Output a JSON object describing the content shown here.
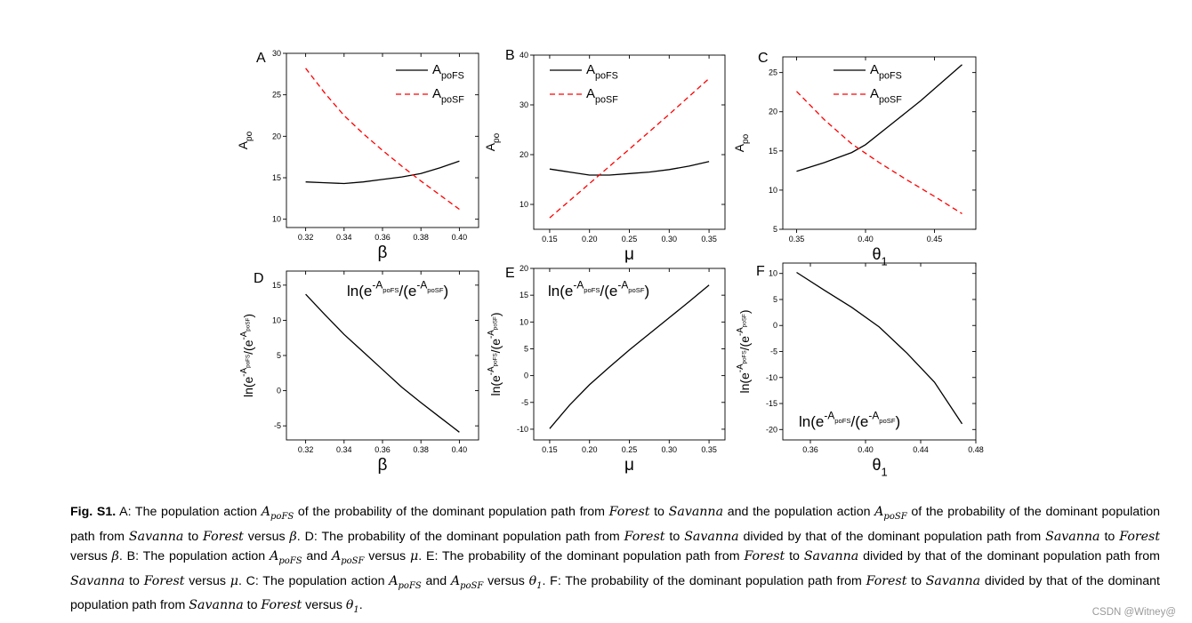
{
  "panels": [
    {
      "id": "A",
      "panel_label": "A",
      "x_label": "β",
      "y_label": "Apo",
      "legend": [
        "ApoFS",
        "ApoSF"
      ]
    },
    {
      "id": "B",
      "panel_label": "B",
      "x_label": "μ",
      "y_label": "Apo",
      "legend": [
        "ApoFS",
        "ApoSF"
      ]
    },
    {
      "id": "C",
      "panel_label": "C",
      "x_label": "θ1",
      "y_label": "Apo",
      "legend": [
        "ApoFS",
        "ApoSF"
      ]
    },
    {
      "id": "D",
      "panel_label": "D",
      "x_label": "β",
      "y_label": "ln(e-ApoFS/(e-ApoSF)",
      "annotation": "ln(e-ApoFS/(e-ApoSF)"
    },
    {
      "id": "E",
      "panel_label": "E",
      "x_label": "μ",
      "y_label": "ln(e-ApoFS/(e-ApoSF)",
      "annotation": "ln(e-ApoFS/(e-ApoSF)"
    },
    {
      "id": "F",
      "panel_label": "F",
      "x_label": "θ1",
      "y_label": "ln(e-ApoFS/(e-ApoSF)",
      "annotation": "ln(e-ApoFS/(e-ApoSF)"
    }
  ],
  "chart_data": [
    {
      "panel": "A",
      "type": "line",
      "xlabel": "β",
      "ylabel": "Apo",
      "xlim": [
        0.31,
        0.41
      ],
      "ylim": [
        9,
        30
      ],
      "xticks": [
        0.32,
        0.34,
        0.36,
        0.38,
        0.4
      ],
      "yticks": [
        10,
        15,
        20,
        25,
        30
      ],
      "xtick_labels": [
        "0.32",
        "0.34",
        "0.36",
        "0.38",
        "0.40"
      ],
      "ytick_labels": [
        "10",
        "15",
        "20",
        "25",
        "30"
      ],
      "series": [
        {
          "name": "ApoFS",
          "style": "solid",
          "color": "#000000",
          "x": [
            0.32,
            0.33,
            0.34,
            0.35,
            0.36,
            0.37,
            0.38,
            0.39,
            0.4
          ],
          "y": [
            14.5,
            14.4,
            14.3,
            14.5,
            14.8,
            15.1,
            15.5,
            16.2,
            17.0
          ]
        },
        {
          "name": "ApoSF",
          "style": "dashed",
          "color": "#ff0000",
          "x": [
            0.32,
            0.33,
            0.34,
            0.35,
            0.36,
            0.37,
            0.38,
            0.39,
            0.4
          ],
          "y": [
            28.2,
            25.2,
            22.5,
            20.3,
            18.3,
            16.4,
            14.6,
            12.9,
            11.2
          ]
        }
      ]
    },
    {
      "panel": "B",
      "type": "line",
      "xlabel": "μ",
      "ylabel": "Apo",
      "xlim": [
        0.13,
        0.37
      ],
      "ylim": [
        5,
        40
      ],
      "xticks": [
        0.15,
        0.2,
        0.25,
        0.3,
        0.35
      ],
      "yticks": [
        10,
        20,
        30,
        40
      ],
      "xtick_labels": [
        "0.15",
        "0.20",
        "0.25",
        "0.30",
        "0.35"
      ],
      "ytick_labels": [
        "10",
        "20",
        "30",
        "40"
      ],
      "series": [
        {
          "name": "ApoFS",
          "style": "solid",
          "color": "#000000",
          "x": [
            0.15,
            0.175,
            0.2,
            0.225,
            0.25,
            0.275,
            0.3,
            0.325,
            0.35
          ],
          "y": [
            17.1,
            16.5,
            15.9,
            15.9,
            16.2,
            16.5,
            17.0,
            17.7,
            18.6
          ]
        },
        {
          "name": "ApoSF",
          "style": "dashed",
          "color": "#ff0000",
          "x": [
            0.15,
            0.2,
            0.25,
            0.3,
            0.35
          ],
          "y": [
            7.3,
            14.2,
            21.1,
            28.1,
            35.3
          ]
        }
      ]
    },
    {
      "panel": "C",
      "type": "line",
      "xlabel": "θ1",
      "ylabel": "Apo",
      "xlim": [
        0.34,
        0.48
      ],
      "ylim": [
        5,
        27
      ],
      "xticks": [
        0.35,
        0.4,
        0.45
      ],
      "yticks": [
        5,
        10,
        15,
        20,
        25
      ],
      "xtick_labels": [
        "0.35",
        "0.40",
        "0.45"
      ],
      "ytick_labels": [
        "5",
        "10",
        "15",
        "20",
        "25"
      ],
      "series": [
        {
          "name": "ApoFS",
          "style": "solid",
          "color": "#000000",
          "x": [
            0.35,
            0.37,
            0.39,
            0.4,
            0.42,
            0.44,
            0.47
          ],
          "y": [
            12.4,
            13.5,
            14.8,
            15.8,
            18.6,
            21.4,
            26.0
          ]
        },
        {
          "name": "ApoSF",
          "style": "dashed",
          "color": "#ff0000",
          "x": [
            0.35,
            0.37,
            0.39,
            0.41,
            0.43,
            0.45,
            0.47
          ],
          "y": [
            22.6,
            19.0,
            15.9,
            13.5,
            11.3,
            9.2,
            7.0
          ]
        }
      ]
    },
    {
      "panel": "D",
      "type": "line",
      "xlabel": "β",
      "ylabel": "ln(e-ApoFS/(e-ApoSF)",
      "xlim": [
        0.31,
        0.41
      ],
      "ylim": [
        -7,
        17
      ],
      "xticks": [
        0.32,
        0.34,
        0.36,
        0.38,
        0.4
      ],
      "yticks": [
        -5,
        0,
        5,
        10,
        15
      ],
      "xtick_labels": [
        "0.32",
        "0.34",
        "0.36",
        "0.38",
        "0.40"
      ],
      "ytick_labels": [
        "-5",
        "0",
        "5",
        "10",
        "15"
      ],
      "series": [
        {
          "name": "ln ratio",
          "style": "solid",
          "color": "#000000",
          "x": [
            0.32,
            0.33,
            0.34,
            0.35,
            0.36,
            0.37,
            0.38,
            0.39,
            0.4
          ],
          "y": [
            13.7,
            10.8,
            8.0,
            5.5,
            3.0,
            0.5,
            -1.7,
            -3.8,
            -5.9
          ]
        }
      ]
    },
    {
      "panel": "E",
      "type": "line",
      "xlabel": "μ",
      "ylabel": "ln(e-ApoFS/(e-ApoSF)",
      "xlim": [
        0.13,
        0.37
      ],
      "ylim": [
        -12,
        20
      ],
      "xticks": [
        0.15,
        0.2,
        0.25,
        0.3,
        0.35
      ],
      "yticks": [
        -10,
        -5,
        0,
        5,
        10,
        15,
        20
      ],
      "xtick_labels": [
        "0.15",
        "0.20",
        "0.25",
        "0.30",
        "0.35"
      ],
      "ytick_labels": [
        "-10",
        "-5",
        "0",
        "5",
        "10",
        "15",
        "20"
      ],
      "series": [
        {
          "name": "ln ratio",
          "style": "solid",
          "color": "#000000",
          "x": [
            0.15,
            0.175,
            0.2,
            0.225,
            0.25,
            0.275,
            0.3,
            0.325,
            0.35
          ],
          "y": [
            -9.9,
            -5.5,
            -1.7,
            1.6,
            4.8,
            7.8,
            10.8,
            13.8,
            16.9
          ]
        }
      ]
    },
    {
      "panel": "F",
      "type": "line",
      "xlabel": "θ1",
      "ylabel": "ln(e-ApoFS/(e-ApoSF)",
      "xlim": [
        0.34,
        0.48
      ],
      "ylim": [
        -22,
        12
      ],
      "xticks": [
        0.36,
        0.4,
        0.44,
        0.48
      ],
      "yticks": [
        -20,
        -15,
        -10,
        -5,
        0,
        5,
        10
      ],
      "xtick_labels": [
        "0.36",
        "0.40",
        "0.44",
        "0.48"
      ],
      "ytick_labels": [
        "-20",
        "-15",
        "-10",
        "-5",
        "0",
        "5",
        "10"
      ],
      "series": [
        {
          "name": "ln ratio",
          "style": "solid",
          "color": "#000000",
          "x": [
            0.35,
            0.37,
            0.39,
            0.41,
            0.43,
            0.45,
            0.47
          ],
          "y": [
            10.2,
            6.8,
            3.5,
            -0.3,
            -5.3,
            -10.9,
            -18.9
          ]
        }
      ]
    }
  ],
  "caption": {
    "label": "Fig. S1.",
    "body": [
      {
        "t": " A: The population action "
      },
      {
        "m": "ApoFS"
      },
      {
        "t": " of the probability of the dominant population path from "
      },
      {
        "m": "Forest"
      },
      {
        "t": " to "
      },
      {
        "m": "Savanna"
      },
      {
        "t": " and the population action "
      },
      {
        "m": "ApoSF"
      },
      {
        "t": " of the probability of the dominant population path from "
      },
      {
        "m": "Savanna"
      },
      {
        "t": " to "
      },
      {
        "m": "Forest"
      },
      {
        "t": " versus "
      },
      {
        "m": "β"
      },
      {
        "t": ". D: The probability of the dominant population path from "
      },
      {
        "m": "Forest"
      },
      {
        "t": " to "
      },
      {
        "m": "Savanna"
      },
      {
        "t": " divided by that of the dominant population path from "
      },
      {
        "m": "Savanna"
      },
      {
        "t": " to "
      },
      {
        "m": "Forest"
      },
      {
        "t": " versus "
      },
      {
        "m": "β"
      },
      {
        "t": ". B: The population action "
      },
      {
        "m": "ApoFS"
      },
      {
        "t": " and "
      },
      {
        "m": "ApoSF"
      },
      {
        "t": " versus "
      },
      {
        "m": "μ"
      },
      {
        "t": ". E: The probability of the dominant population path from "
      },
      {
        "m": "Forest"
      },
      {
        "t": " to "
      },
      {
        "m": "Savanna"
      },
      {
        "t": " divided by that of the dominant population path from "
      },
      {
        "m": "Savanna"
      },
      {
        "t": " to "
      },
      {
        "m": "Forest"
      },
      {
        "t": " versus "
      },
      {
        "m": "μ"
      },
      {
        "t": ". C: The population action "
      },
      {
        "m": "ApoFS"
      },
      {
        "t": " and "
      },
      {
        "m": "ApoSF"
      },
      {
        "t": " versus "
      },
      {
        "m": "θ1"
      },
      {
        "t": ". F: The probability of the dominant population path from "
      },
      {
        "m": "Forest"
      },
      {
        "t": " to "
      },
      {
        "m": "Savanna"
      },
      {
        "t": " divided by that of the dominant population path from "
      },
      {
        "m": "Savanna"
      },
      {
        "t": " to "
      },
      {
        "m": "Forest"
      },
      {
        "t": " versus "
      },
      {
        "m": "θ1"
      },
      {
        "t": "."
      }
    ]
  },
  "watermark": "CSDN @Witney@"
}
